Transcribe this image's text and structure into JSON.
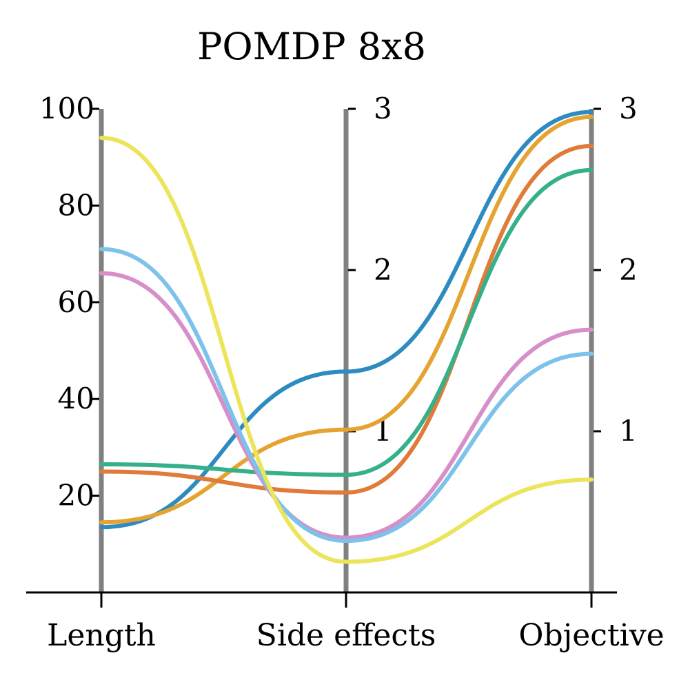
{
  "chart_data": {
    "type": "parallel_coordinates",
    "title": "POMDP 8x8",
    "axes": [
      {
        "name": "Length",
        "range": [
          0,
          100
        ],
        "ticks": [
          20,
          40,
          60,
          80,
          100
        ],
        "tick_labels": [
          "20",
          "40",
          "60",
          "80",
          "100"
        ],
        "tick_side": "left"
      },
      {
        "name": "Side effects",
        "range": [
          0,
          3
        ],
        "ticks": [
          1,
          2,
          3
        ],
        "tick_labels": [
          "1",
          "2",
          "3"
        ],
        "tick_side": "right"
      },
      {
        "name": "Objective",
        "range": [
          0,
          3
        ],
        "ticks": [
          1,
          2,
          3
        ],
        "tick_labels": [
          "1",
          "2",
          "3"
        ],
        "tick_side": "right"
      }
    ],
    "series": [
      {
        "name": "blue",
        "color": "#2e8bc0",
        "values": [
          13.5,
          1.37,
          2.98
        ]
      },
      {
        "name": "gold",
        "color": "#e5a431",
        "values": [
          14.5,
          1.01,
          2.95
        ]
      },
      {
        "name": "vermillion",
        "color": "#e07b39",
        "values": [
          25.0,
          0.62,
          2.77
        ]
      },
      {
        "name": "green",
        "color": "#36b08a",
        "values": [
          26.5,
          0.73,
          2.62
        ]
      },
      {
        "name": "pink",
        "color": "#d68fc8",
        "values": [
          66.0,
          0.34,
          1.63
        ]
      },
      {
        "name": "sky",
        "color": "#7cc2eb",
        "values": [
          71.0,
          0.32,
          1.48
        ]
      },
      {
        "name": "yellow",
        "color": "#ece55c",
        "values": [
          94.0,
          0.19,
          0.7
        ]
      }
    ]
  }
}
